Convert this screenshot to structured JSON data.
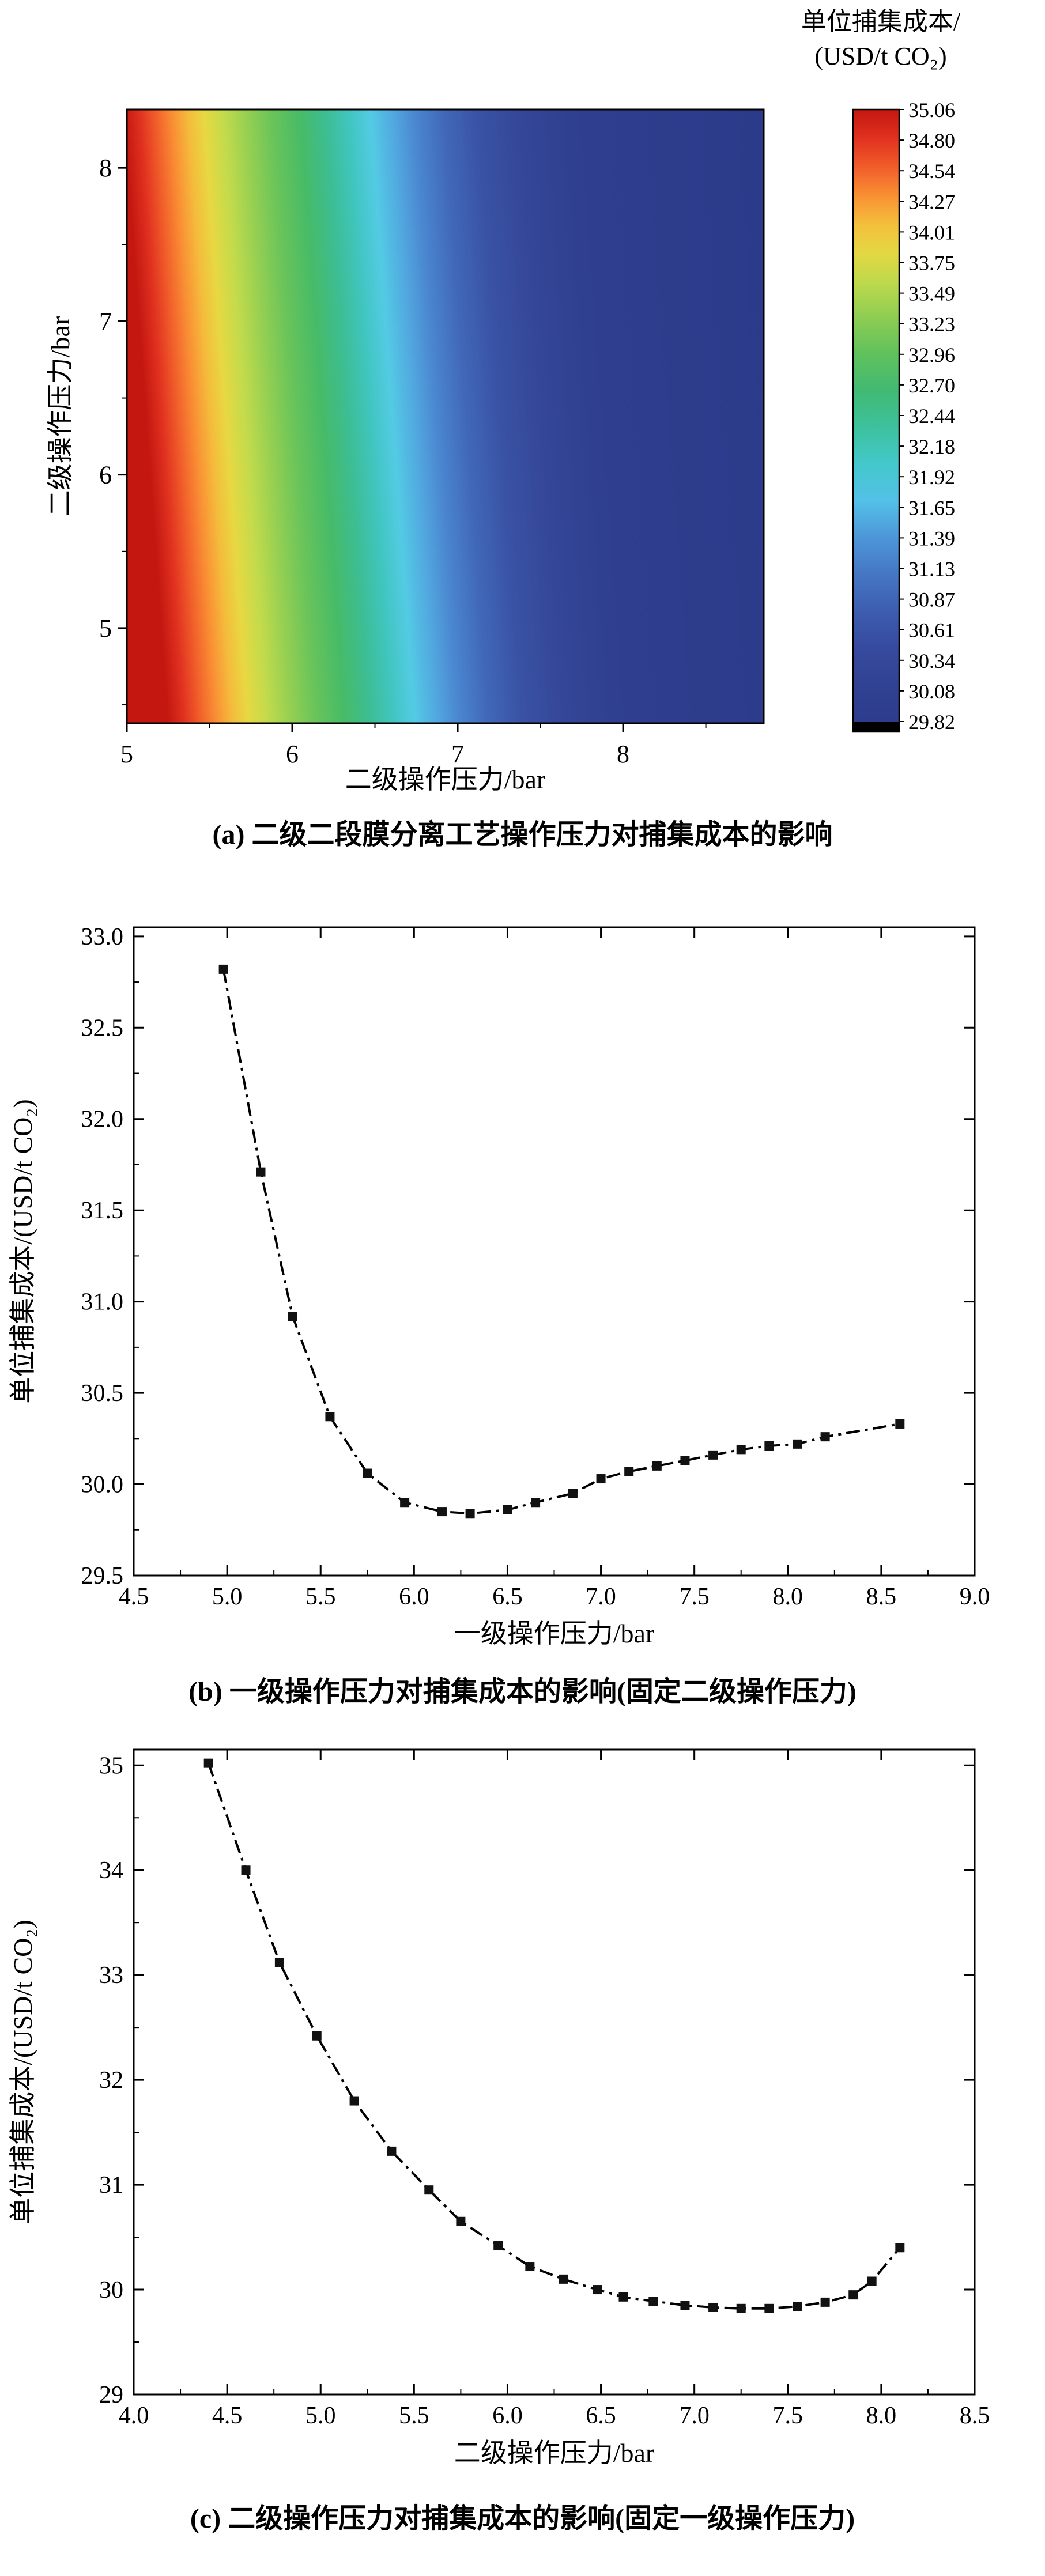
{
  "chart_data": [
    {
      "id": "a",
      "type": "heatmap",
      "title_lines": [
        "单位捕集成本/",
        "(USD/t CO₂)"
      ],
      "xlabel": "二级操作压力/bar",
      "ylabel": "二级操作压力/bar",
      "x_range": [
        5.0,
        8.85
      ],
      "y_range": [
        4.38,
        8.38
      ],
      "x_ticks": {
        "values": [
          5,
          6,
          7,
          8
        ],
        "labels": [
          "5",
          "6",
          "7",
          "8"
        ]
      },
      "y_ticks": {
        "values": [
          5,
          6,
          7,
          8
        ],
        "labels": [
          "5",
          "6",
          "7",
          "8"
        ]
      },
      "gradient_tilt": 0.07,
      "gradient": [
        [
          0.0,
          "#c41710"
        ],
        [
          0.025,
          "#e03120"
        ],
        [
          0.05,
          "#f15f2a"
        ],
        [
          0.075,
          "#f98e34"
        ],
        [
          0.1,
          "#f5bb3c"
        ],
        [
          0.125,
          "#e7d842"
        ],
        [
          0.155,
          "#c3db4b"
        ],
        [
          0.19,
          "#97d052"
        ],
        [
          0.23,
          "#6ac45a"
        ],
        [
          0.275,
          "#47bb67"
        ],
        [
          0.315,
          "#3dbd92"
        ],
        [
          0.35,
          "#40c5be"
        ],
        [
          0.385,
          "#53cbe4"
        ],
        [
          0.42,
          "#52a8e0"
        ],
        [
          0.455,
          "#4a86cf"
        ],
        [
          0.5,
          "#4168b8"
        ],
        [
          0.55,
          "#3a53a5"
        ],
        [
          0.62,
          "#344697"
        ],
        [
          0.72,
          "#2f3e8e"
        ],
        [
          1.0,
          "#2c3a8a"
        ]
      ],
      "colorbar": {
        "labels": [
          "35.06",
          "34.80",
          "34.54",
          "34.27",
          "34.01",
          "33.75",
          "33.49",
          "33.23",
          "32.96",
          "32.70",
          "32.44",
          "32.18",
          "31.92",
          "31.65",
          "31.39",
          "31.13",
          "30.87",
          "30.61",
          "30.34",
          "30.08",
          "29.82"
        ],
        "gradient": [
          [
            0.0,
            "#c41710"
          ],
          [
            0.05,
            "#e23320"
          ],
          [
            0.1,
            "#f2632b"
          ],
          [
            0.145,
            "#f99534"
          ],
          [
            0.19,
            "#f3c03d"
          ],
          [
            0.235,
            "#e3d843"
          ],
          [
            0.285,
            "#bcd94c"
          ],
          [
            0.34,
            "#8ecd53"
          ],
          [
            0.4,
            "#5fc15c"
          ],
          [
            0.46,
            "#41ba74"
          ],
          [
            0.52,
            "#3dc19e"
          ],
          [
            0.58,
            "#44c8cc"
          ],
          [
            0.64,
            "#54c0e8"
          ],
          [
            0.7,
            "#4d96d8"
          ],
          [
            0.76,
            "#4576c4"
          ],
          [
            0.82,
            "#3d5db0"
          ],
          [
            0.88,
            "#364a9e"
          ],
          [
            0.94,
            "#314292"
          ],
          [
            1.0,
            "#2d3c8c"
          ]
        ],
        "under_color": "#000000"
      },
      "caption": "(a) 二级二段膜分离工艺操作压力对捕集成本的影响"
    },
    {
      "id": "b",
      "type": "line",
      "xlabel": "一级操作压力/bar",
      "ylabel": "单位捕集成本/(USD/t CO₂)",
      "x_range": [
        4.5,
        9.0
      ],
      "y_range": [
        29.5,
        33.05
      ],
      "x_ticks": {
        "values": [
          4.5,
          5.0,
          5.5,
          6.0,
          6.5,
          7.0,
          7.5,
          8.0,
          8.5,
          9.0
        ],
        "labels": [
          "4.5",
          "5.0",
          "5.5",
          "6.0",
          "6.5",
          "7.0",
          "7.5",
          "8.0",
          "8.5",
          "9.0"
        ]
      },
      "y_ticks": {
        "values": [
          29.5,
          30.0,
          30.5,
          31.0,
          31.5,
          32.0,
          32.5,
          33.0
        ],
        "labels": [
          "29.5",
          "30.0",
          "30.5",
          "31.0",
          "31.5",
          "32.0",
          "32.5",
          "33.0"
        ]
      },
      "line_color": "#000000",
      "marker_color": "#111111",
      "points": [
        [
          4.98,
          32.82
        ],
        [
          5.18,
          31.71
        ],
        [
          5.35,
          30.92
        ],
        [
          5.55,
          30.37
        ],
        [
          5.75,
          30.06
        ],
        [
          5.95,
          29.9
        ],
        [
          6.15,
          29.85
        ],
        [
          6.3,
          29.84
        ],
        [
          6.5,
          29.86
        ],
        [
          6.65,
          29.9
        ],
        [
          6.85,
          29.95
        ],
        [
          7.0,
          30.03
        ],
        [
          7.15,
          30.07
        ],
        [
          7.3,
          30.1
        ],
        [
          7.45,
          30.13
        ],
        [
          7.6,
          30.16
        ],
        [
          7.75,
          30.19
        ],
        [
          7.9,
          30.21
        ],
        [
          8.05,
          30.22
        ],
        [
          8.2,
          30.26
        ],
        [
          8.6,
          30.33
        ]
      ],
      "caption": "(b) 一级操作压力对捕集成本的影响(固定二级操作压力)"
    },
    {
      "id": "c",
      "type": "line",
      "xlabel": "二级操作压力/bar",
      "ylabel": "单位捕集成本/(USD/t CO₂)",
      "x_range": [
        4.0,
        8.5
      ],
      "y_range": [
        29.0,
        35.15
      ],
      "x_ticks": {
        "values": [
          4.0,
          4.5,
          5.0,
          5.5,
          6.0,
          6.5,
          7.0,
          7.5,
          8.0,
          8.5
        ],
        "labels": [
          "4.0",
          "4.5",
          "5.0",
          "5.5",
          "6.0",
          "6.5",
          "7.0",
          "7.5",
          "8.0",
          "8.5"
        ]
      },
      "y_ticks": {
        "values": [
          29,
          30,
          31,
          32,
          33,
          34,
          35
        ],
        "labels": [
          "29",
          "30",
          "31",
          "32",
          "33",
          "34",
          "35"
        ]
      },
      "line_color": "#000000",
      "marker_color": "#111111",
      "points": [
        [
          4.4,
          35.02
        ],
        [
          4.6,
          34.0
        ],
        [
          4.78,
          33.12
        ],
        [
          4.98,
          32.42
        ],
        [
          5.18,
          31.8
        ],
        [
          5.38,
          31.32
        ],
        [
          5.58,
          30.95
        ],
        [
          5.75,
          30.65
        ],
        [
          5.95,
          30.42
        ],
        [
          6.12,
          30.22
        ],
        [
          6.3,
          30.1
        ],
        [
          6.48,
          30.0
        ],
        [
          6.62,
          29.93
        ],
        [
          6.78,
          29.89
        ],
        [
          6.95,
          29.85
        ],
        [
          7.1,
          29.83
        ],
        [
          7.25,
          29.82
        ],
        [
          7.4,
          29.82
        ],
        [
          7.55,
          29.84
        ],
        [
          7.7,
          29.88
        ],
        [
          7.85,
          29.95
        ],
        [
          7.95,
          30.08
        ],
        [
          8.1,
          30.4
        ]
      ],
      "caption": "(c) 二级操作压力对捕集成本的影响(固定一级操作压力)"
    }
  ]
}
